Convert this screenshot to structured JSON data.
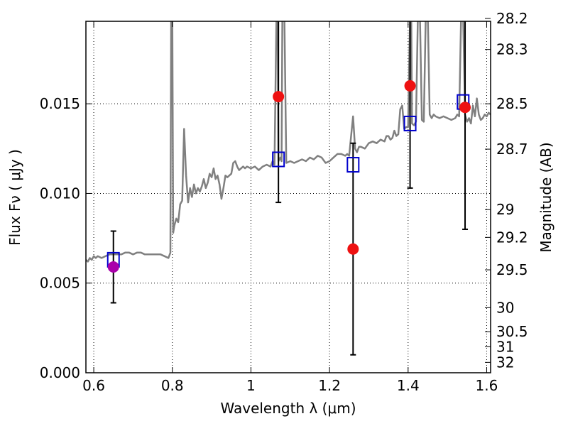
{
  "chart_data": {
    "type": "scatter",
    "title": "",
    "xlabel": "Wavelength  λ (μm)",
    "ylabel": "Flux  Fν  ( μJy )",
    "y2label": "Magnitude (AB)",
    "xlim": [
      0.58,
      1.61
    ],
    "ylim": [
      0.0,
      0.0196
    ],
    "grid": true,
    "x_ticks": [
      {
        "value": 0.6,
        "label": "0.6"
      },
      {
        "value": 0.8,
        "label": "0.8"
      },
      {
        "value": 1.0,
        "label": "1"
      },
      {
        "value": 1.2,
        "label": "1.2"
      },
      {
        "value": 1.4,
        "label": "1.4"
      },
      {
        "value": 1.6,
        "label": "1.6"
      }
    ],
    "y_ticks": [
      {
        "value": 0.0,
        "label": "0.000"
      },
      {
        "value": 0.005,
        "label": "0.005"
      },
      {
        "value": 0.01,
        "label": "0.010"
      },
      {
        "value": 0.015,
        "label": "0.015"
      }
    ],
    "magnitude_ticks": [
      {
        "value": 0.01976,
        "label": "28.2"
      },
      {
        "value": 0.01803,
        "label": "28.3"
      },
      {
        "value": 0.015,
        "label": "28.5"
      },
      {
        "value": 0.01247,
        "label": "28.7"
      },
      {
        "value": 0.0091,
        "label": "29"
      },
      {
        "value": 0.00755,
        "label": "29.2"
      },
      {
        "value": 0.00574,
        "label": "29.5"
      },
      {
        "value": 0.00363,
        "label": "30"
      },
      {
        "value": 0.00229,
        "label": "30.5"
      },
      {
        "value": 0.00145,
        "label": "31"
      },
      {
        "value": 0.00058,
        "label": "32"
      }
    ],
    "model_spectrum": {
      "color": "#808080",
      "points": [
        [
          0.58,
          0.0063
        ],
        [
          0.585,
          0.0062
        ],
        [
          0.59,
          0.0064
        ],
        [
          0.595,
          0.0063
        ],
        [
          0.6,
          0.0065
        ],
        [
          0.605,
          0.0064
        ],
        [
          0.61,
          0.0065
        ],
        [
          0.62,
          0.0064
        ],
        [
          0.63,
          0.0065
        ],
        [
          0.64,
          0.0066
        ],
        [
          0.65,
          0.0066
        ],
        [
          0.66,
          0.0066
        ],
        [
          0.67,
          0.0066
        ],
        [
          0.68,
          0.0067
        ],
        [
          0.69,
          0.0067
        ],
        [
          0.7,
          0.0066
        ],
        [
          0.71,
          0.0067
        ],
        [
          0.72,
          0.0067
        ],
        [
          0.73,
          0.0066
        ],
        [
          0.74,
          0.0066
        ],
        [
          0.75,
          0.0066
        ],
        [
          0.76,
          0.0066
        ],
        [
          0.77,
          0.0066
        ],
        [
          0.78,
          0.0065
        ],
        [
          0.79,
          0.0064
        ],
        [
          0.795,
          0.0067
        ],
        [
          0.797,
          0.02
        ],
        [
          0.8,
          0.02
        ],
        [
          0.802,
          0.0078
        ],
        [
          0.805,
          0.0082
        ],
        [
          0.81,
          0.0086
        ],
        [
          0.815,
          0.0084
        ],
        [
          0.82,
          0.0094
        ],
        [
          0.825,
          0.0096
        ],
        [
          0.83,
          0.0136
        ],
        [
          0.835,
          0.011
        ],
        [
          0.84,
          0.0095
        ],
        [
          0.845,
          0.0103
        ],
        [
          0.85,
          0.0098
        ],
        [
          0.855,
          0.0105
        ],
        [
          0.86,
          0.01
        ],
        [
          0.865,
          0.0103
        ],
        [
          0.87,
          0.0101
        ],
        [
          0.875,
          0.0104
        ],
        [
          0.88,
          0.0108
        ],
        [
          0.885,
          0.0103
        ],
        [
          0.89,
          0.0106
        ],
        [
          0.895,
          0.0111
        ],
        [
          0.9,
          0.0109
        ],
        [
          0.905,
          0.0114
        ],
        [
          0.91,
          0.0108
        ],
        [
          0.915,
          0.011
        ],
        [
          0.92,
          0.0105
        ],
        [
          0.925,
          0.0097
        ],
        [
          0.93,
          0.0103
        ],
        [
          0.935,
          0.011
        ],
        [
          0.94,
          0.0109
        ],
        [
          0.945,
          0.011
        ],
        [
          0.95,
          0.0111
        ],
        [
          0.955,
          0.0117
        ],
        [
          0.96,
          0.0118
        ],
        [
          0.965,
          0.0115
        ],
        [
          0.97,
          0.0113
        ],
        [
          0.975,
          0.0114
        ],
        [
          0.98,
          0.0115
        ],
        [
          0.985,
          0.0114
        ],
        [
          0.99,
          0.0115
        ],
        [
          1.0,
          0.0114
        ],
        [
          1.01,
          0.0115
        ],
        [
          1.02,
          0.0113
        ],
        [
          1.03,
          0.0115
        ],
        [
          1.04,
          0.0116
        ],
        [
          1.05,
          0.0115
        ],
        [
          1.055,
          0.0118
        ],
        [
          1.06,
          0.0116
        ],
        [
          1.065,
          0.02
        ],
        [
          1.068,
          0.02
        ],
        [
          1.07,
          0.0118
        ],
        [
          1.075,
          0.012
        ],
        [
          1.078,
          0.0118
        ],
        [
          1.08,
          0.02
        ],
        [
          1.085,
          0.02
        ],
        [
          1.09,
          0.0117
        ],
        [
          1.1,
          0.0118
        ],
        [
          1.11,
          0.0117
        ],
        [
          1.12,
          0.0118
        ],
        [
          1.13,
          0.0119
        ],
        [
          1.14,
          0.0118
        ],
        [
          1.15,
          0.012
        ],
        [
          1.16,
          0.0119
        ],
        [
          1.17,
          0.0121
        ],
        [
          1.18,
          0.012
        ],
        [
          1.19,
          0.0117
        ],
        [
          1.2,
          0.0118
        ],
        [
          1.21,
          0.012
        ],
        [
          1.22,
          0.0122
        ],
        [
          1.23,
          0.0122
        ],
        [
          1.24,
          0.0121
        ],
        [
          1.245,
          0.0122
        ],
        [
          1.25,
          0.0121
        ],
        [
          1.255,
          0.0132
        ],
        [
          1.26,
          0.0143
        ],
        [
          1.265,
          0.0125
        ],
        [
          1.27,
          0.0123
        ],
        [
          1.275,
          0.0126
        ],
        [
          1.28,
          0.0126
        ],
        [
          1.29,
          0.0125
        ],
        [
          1.3,
          0.0128
        ],
        [
          1.31,
          0.0129
        ],
        [
          1.32,
          0.0128
        ],
        [
          1.33,
          0.013
        ],
        [
          1.34,
          0.0129
        ],
        [
          1.345,
          0.0132
        ],
        [
          1.35,
          0.0132
        ],
        [
          1.355,
          0.013
        ],
        [
          1.36,
          0.0131
        ],
        [
          1.365,
          0.0135
        ],
        [
          1.37,
          0.0132
        ],
        [
          1.375,
          0.0133
        ],
        [
          1.38,
          0.0147
        ],
        [
          1.385,
          0.0149
        ],
        [
          1.39,
          0.0136
        ],
        [
          1.395,
          0.0137
        ],
        [
          1.4,
          0.0137
        ],
        [
          1.405,
          0.02
        ],
        [
          1.408,
          0.02
        ],
        [
          1.41,
          0.0139
        ],
        [
          1.415,
          0.0138
        ],
        [
          1.42,
          0.014
        ],
        [
          1.425,
          0.02
        ],
        [
          1.43,
          0.02
        ],
        [
          1.435,
          0.0141
        ],
        [
          1.44,
          0.014
        ],
        [
          1.445,
          0.02
        ],
        [
          1.45,
          0.02
        ],
        [
          1.455,
          0.0144
        ],
        [
          1.46,
          0.0142
        ],
        [
          1.465,
          0.0144
        ],
        [
          1.47,
          0.0143
        ],
        [
          1.48,
          0.0142
        ],
        [
          1.49,
          0.0143
        ],
        [
          1.5,
          0.0142
        ],
        [
          1.51,
          0.0141
        ],
        [
          1.52,
          0.0142
        ],
        [
          1.525,
          0.0144
        ],
        [
          1.53,
          0.0143
        ],
        [
          1.535,
          0.02
        ],
        [
          1.54,
          0.02
        ],
        [
          1.545,
          0.0144
        ],
        [
          1.55,
          0.014
        ],
        [
          1.555,
          0.0142
        ],
        [
          1.56,
          0.0139
        ],
        [
          1.565,
          0.0149
        ],
        [
          1.57,
          0.0143
        ],
        [
          1.575,
          0.0153
        ],
        [
          1.58,
          0.0144
        ],
        [
          1.585,
          0.0141
        ],
        [
          1.59,
          0.0142
        ],
        [
          1.595,
          0.0144
        ],
        [
          1.6,
          0.0143
        ],
        [
          1.605,
          0.0145
        ],
        [
          1.61,
          0.0144
        ]
      ]
    },
    "model_synthetic_photometry": {
      "marker": "open-square",
      "color": "#0000cc",
      "points": [
        {
          "x": 0.65,
          "y": 0.0063
        },
        {
          "x": 1.07,
          "y": 0.0119
        },
        {
          "x": 1.26,
          "y": 0.0116
        },
        {
          "x": 1.405,
          "y": 0.0139
        },
        {
          "x": 1.54,
          "y": 0.0151
        }
      ]
    },
    "observed_photometry": {
      "marker": "filled-circle",
      "points": [
        {
          "x": 0.65,
          "y": 0.0059,
          "y_low": 0.0039,
          "y_high": 0.0079,
          "color": "#aa00aa"
        },
        {
          "x": 1.07,
          "y": 0.0154,
          "y_low": 0.0095,
          "y_high": 0.02,
          "color": "#ee1111"
        },
        {
          "x": 1.26,
          "y": 0.0069,
          "y_low": 0.001,
          "y_high": 0.0128,
          "color": "#ee1111"
        },
        {
          "x": 1.405,
          "y": 0.016,
          "y_low": 0.0103,
          "y_high": 0.02,
          "color": "#ee1111"
        },
        {
          "x": 1.545,
          "y": 0.0148,
          "y_low": 0.008,
          "y_high": 0.02,
          "color": "#ee1111"
        }
      ]
    }
  }
}
